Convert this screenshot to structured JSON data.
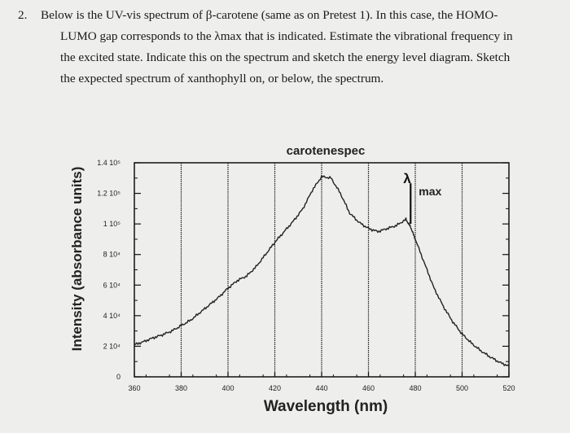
{
  "question": {
    "number": "2.",
    "lines": [
      "Below is the UV-vis spectrum of β-carotene (same as on Pretest 1). In this case, the HOMO-",
      "LUMO gap corresponds to the λmax that is indicated. Estimate the vibrational frequency in",
      "the excited state. Indicate this on the spectrum and sketch the energy level diagram. Sketch",
      "the expected spectrum of xanthophyll on, or below, the spectrum."
    ]
  },
  "chart_data": {
    "type": "line",
    "title": "carotenespec",
    "xlabel": "Wavelength (nm)",
    "ylabel": "Intensity (absorbance units)",
    "xlim": [
      360,
      520
    ],
    "ylim": [
      0,
      140000
    ],
    "x_ticks": [
      "360",
      "380",
      "400",
      "420",
      "440",
      "460",
      "480",
      "500",
      "520"
    ],
    "y_ticks": [
      {
        "value": 0,
        "label": "0"
      },
      {
        "value": 20000,
        "label": "2 10⁴"
      },
      {
        "value": 40000,
        "label": "4 10⁴"
      },
      {
        "value": 60000,
        "label": "6 10⁴"
      },
      {
        "value": 80000,
        "label": "8 10⁴"
      },
      {
        "value": 100000,
        "label": "1 10⁵"
      },
      {
        "value": 120000,
        "label": "1.2 10⁵"
      },
      {
        "value": 140000,
        "label": "1.4 10⁵"
      }
    ],
    "grid": true,
    "annotation": {
      "symbol": "λ",
      "text": "max",
      "x": 478,
      "y": 117000
    },
    "series": [
      {
        "name": "",
        "color": "#222222",
        "x": [
          360,
          364,
          368,
          372,
          376,
          380,
          384,
          388,
          392,
          396,
          400,
          404,
          408,
          412,
          416,
          420,
          424,
          428,
          432,
          436,
          440,
          444,
          448,
          452,
          456,
          460,
          464,
          468,
          472,
          476,
          478,
          480,
          484,
          488,
          492,
          496,
          500,
          504,
          508,
          512,
          516,
          520
        ],
        "y": [
          21000,
          23000,
          25500,
          27500,
          30000,
          33500,
          37000,
          42000,
          47000,
          52000,
          58000,
          63000,
          66000,
          72000,
          80000,
          88000,
          95000,
          102000,
          110000,
          122000,
          131000,
          130000,
          120000,
          107000,
          101000,
          97000,
          95000,
          97000,
          99000,
          103000,
          98000,
          90000,
          74000,
          58000,
          46000,
          36000,
          28000,
          22000,
          17000,
          13000,
          9500,
          7000
        ]
      }
    ]
  }
}
